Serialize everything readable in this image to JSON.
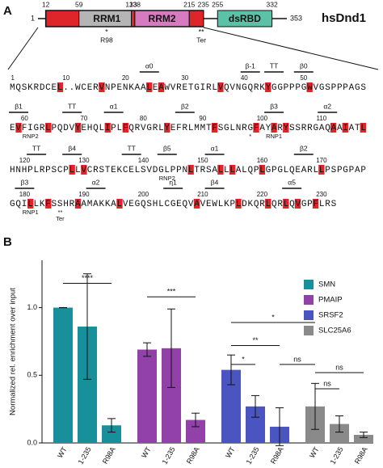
{
  "panel_a": {
    "label": "A",
    "domain_map": {
      "start": 1,
      "end": 353,
      "protein": "hsDnd1",
      "boundaries": [
        12,
        59,
        133,
        138,
        215,
        235,
        255,
        332
      ],
      "domains": [
        "RRM1",
        "RRM2",
        "dsRBD"
      ],
      "marks": [
        {
          "symbol": "*",
          "label": "R98"
        },
        {
          "symbol": "**",
          "label": "Ter"
        }
      ]
    },
    "rows": [
      {
        "numbers": [
          1,
          10,
          20,
          30,
          40,
          50
        ],
        "sequence": "MQSKRDCEL..WCERVNPENKAALEAWVRETGIRLVQVNGQRKYGGPPPGWVGSPPPAGS",
        "above": [
          "α0",
          "β-1",
          "TT",
          "β0"
        ],
        "below": []
      },
      {
        "numbers": [
          60,
          70,
          80,
          90,
          100,
          110
        ],
        "sequence": "EVFIGRLPQDVYEHQLIPLFQRVGRLYEFRLMMTFSGLNRGFAYARYSSRRGAQAAIATL",
        "above": [
          "β1",
          "TT",
          "α1",
          "β2",
          "β3",
          "α2"
        ],
        "below": [
          "RNP2",
          "*",
          "RNP1"
        ]
      },
      {
        "numbers": [
          120,
          130,
          140,
          150,
          160,
          170
        ],
        "sequence": "HNHPLRPSCPLLVCRSTEKCELSVDGLPPNLTRSALLLALQPLGPGLQEARLLPSPGPAP",
        "above": [
          "TT",
          "β4",
          "TT",
          "β5",
          "α1",
          "β2"
        ],
        "below": [
          "RNP2"
        ]
      },
      {
        "numbers": [
          180,
          190,
          200,
          210,
          220,
          230
        ],
        "sequence": "GQILLKFSSHRAAMAKKALVEGQSHLCGEQVAVEWLKPLDKQRLQRLQVGPFLRS",
        "above": [
          "β3",
          "α2",
          "η1",
          "β4",
          "α5"
        ],
        "below": [
          "RNP1",
          "**",
          "Ter"
        ]
      }
    ]
  },
  "chart_data": {
    "type": "bar",
    "panel_label": "B",
    "ylabel": "Normalized rel. enrichment over input",
    "categories": [
      "WT",
      "1-235",
      "R98A"
    ],
    "series": [
      {
        "name": "SMN",
        "color": "#17909b",
        "values": [
          1.0,
          0.86,
          0.13
        ],
        "errors": [
          0,
          0.39,
          0.05
        ]
      },
      {
        "name": "PMAIP",
        "color": "#9241a8",
        "values": [
          0.69,
          0.7,
          0.17
        ],
        "errors": [
          0.05,
          0.29,
          0.05
        ]
      },
      {
        "name": "SRSF2",
        "color": "#4a55c2",
        "values": [
          0.54,
          0.27,
          0.12
        ],
        "errors": [
          0.11,
          0.08,
          0.14
        ]
      },
      {
        "name": "SLC25A6",
        "color": "#8a8a8a",
        "values": [
          0.27,
          0.14,
          0.06
        ],
        "errors": [
          0.17,
          0.06,
          0.02
        ]
      }
    ],
    "ylim": [
      0,
      1.35
    ],
    "yticks": [
      {
        "value": 0,
        "label": "0.0"
      },
      0.5,
      {
        "value": 1,
        "label": "1.0"
      }
    ],
    "annotations": [
      "****",
      "***",
      "*",
      "**",
      "*",
      "ns",
      "ns",
      "ns"
    ]
  }
}
